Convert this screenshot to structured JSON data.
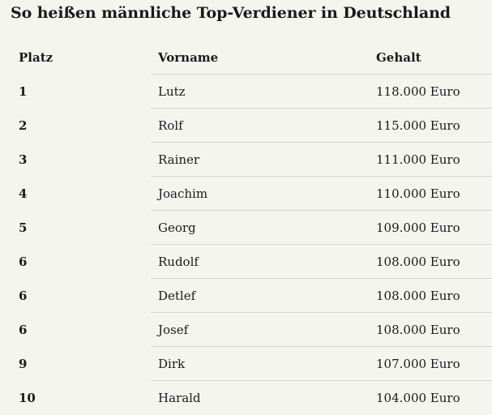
{
  "title": "So heißen männliche Top-Verdiener in Deutschland",
  "table": {
    "headers": {
      "platz": "Platz",
      "vorname": "Vorname",
      "gehalt": "Gehalt"
    },
    "rows": [
      {
        "platz": "1",
        "vorname": "Lutz",
        "gehalt": "118.000 Euro"
      },
      {
        "platz": "2",
        "vorname": "Rolf",
        "gehalt": "115.000 Euro"
      },
      {
        "platz": "3",
        "vorname": "Rainer",
        "gehalt": "111.000 Euro"
      },
      {
        "platz": "4",
        "vorname": "Joachim",
        "gehalt": "110.000 Euro"
      },
      {
        "platz": "5",
        "vorname": "Georg",
        "gehalt": "109.000 Euro"
      },
      {
        "platz": "6",
        "vorname": "Rudolf",
        "gehalt": "108.000 Euro"
      },
      {
        "platz": "6",
        "vorname": "Detlef",
        "gehalt": "108.000 Euro"
      },
      {
        "platz": "6",
        "vorname": "Josef",
        "gehalt": "108.000 Euro"
      },
      {
        "platz": "9",
        "vorname": "Dirk",
        "gehalt": "107.000 Euro"
      },
      {
        "platz": "10",
        "vorname": "Harald",
        "gehalt": "104.000 Euro"
      }
    ]
  },
  "colors": {
    "background": "#f5f5f0",
    "text": "#1a1a1a",
    "divider": "#d6d6d0"
  }
}
